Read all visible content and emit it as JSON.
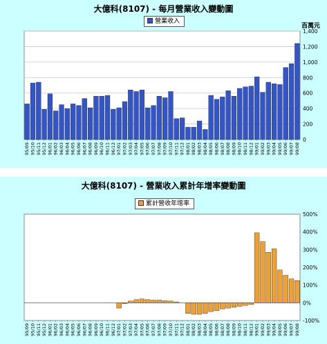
{
  "charts": [
    {
      "title": "大億科(8107) - 每月營業收入變動圖",
      "legend_label": "營業收入",
      "unit": "百萬元",
      "bar_color": "#3355cc"
    },
    {
      "title": "大億科(8107) -  營業收入累計年增率變動圖",
      "legend_label": "累計營收年增率",
      "bar_color": "#f0a030"
    }
  ],
  "chart_data": [
    {
      "type": "bar",
      "title": "大億科(8107) - 每月營業收入變動圖",
      "ylabel": "百萬元",
      "ylim": [
        0,
        1400
      ],
      "yticks": [
        "0",
        "200",
        "400",
        "600",
        "800",
        "1,000",
        "1,200",
        "1,400"
      ],
      "grid": true,
      "legend": "top-center",
      "categories": [
        "95/09",
        "95/10",
        "95/11",
        "95/12",
        "96/01",
        "96/02",
        "96/03",
        "96/04",
        "96/05",
        "96/06",
        "96/07",
        "96/08",
        "96/09",
        "96/10",
        "96/11",
        "96/12",
        "97/01",
        "97/02",
        "97/03",
        "97/04",
        "97/05",
        "97/06",
        "97/07",
        "97/08",
        "97/09",
        "97/10",
        "97/11",
        "97/12",
        "98/01",
        "98/02",
        "98/03",
        "98/04",
        "98/05",
        "98/06",
        "98/07",
        "98/08",
        "98/09",
        "98/10",
        "98/11",
        "98/12",
        "99/01",
        "99/02",
        "99/03",
        "99/04",
        "99/05",
        "99/06",
        "99/07",
        "99/08"
      ],
      "series": [
        {
          "name": "營業收入",
          "values": [
            460,
            730,
            740,
            390,
            590,
            370,
            450,
            400,
            460,
            440,
            530,
            410,
            560,
            560,
            570,
            390,
            410,
            490,
            640,
            620,
            640,
            410,
            440,
            560,
            540,
            620,
            270,
            280,
            160,
            160,
            240,
            130,
            570,
            520,
            550,
            630,
            560,
            660,
            680,
            690,
            810,
            610,
            740,
            720,
            710,
            930,
            980,
            1240
          ]
        }
      ]
    },
    {
      "type": "bar",
      "title": "大億科(8107) -  營業收入累計年增率變動圖",
      "ylim": [
        -100,
        500
      ],
      "yticks": [
        "-100%",
        "0%",
        "100%",
        "200%",
        "300%",
        "400%",
        "500%"
      ],
      "grid": false,
      "legend": "top-center",
      "categories": [
        "95/09",
        "95/10",
        "95/11",
        "95/12",
        "96/01",
        "96/02",
        "96/03",
        "96/04",
        "96/05",
        "96/06",
        "96/07",
        "96/08",
        "96/09",
        "96/10",
        "96/11",
        "96/12",
        "97/01",
        "97/02",
        "97/03",
        "97/04",
        "97/05",
        "97/06",
        "97/07",
        "97/08",
        "97/09",
        "97/10",
        "97/11",
        "97/12",
        "98/01",
        "98/02",
        "98/03",
        "98/04",
        "98/05",
        "98/06",
        "98/07",
        "98/08",
        "98/09",
        "98/10",
        "98/11",
        "98/12",
        "99/01",
        "99/02",
        "99/03",
        "99/04",
        "99/05",
        "99/06",
        "99/07",
        "99/08"
      ],
      "series": [
        {
          "name": "累計營收年增率",
          "values": [
            0,
            0,
            0,
            0,
            0,
            0,
            0,
            0,
            0,
            0,
            0,
            0,
            0,
            0,
            0,
            0,
            -30,
            -5,
            10,
            18,
            22,
            18,
            15,
            15,
            12,
            10,
            5,
            0,
            -60,
            -65,
            -65,
            -60,
            -50,
            -45,
            -35,
            -30,
            -25,
            -20,
            -15,
            -10,
            395,
            345,
            285,
            305,
            185,
            155,
            135,
            125
          ]
        }
      ]
    }
  ]
}
